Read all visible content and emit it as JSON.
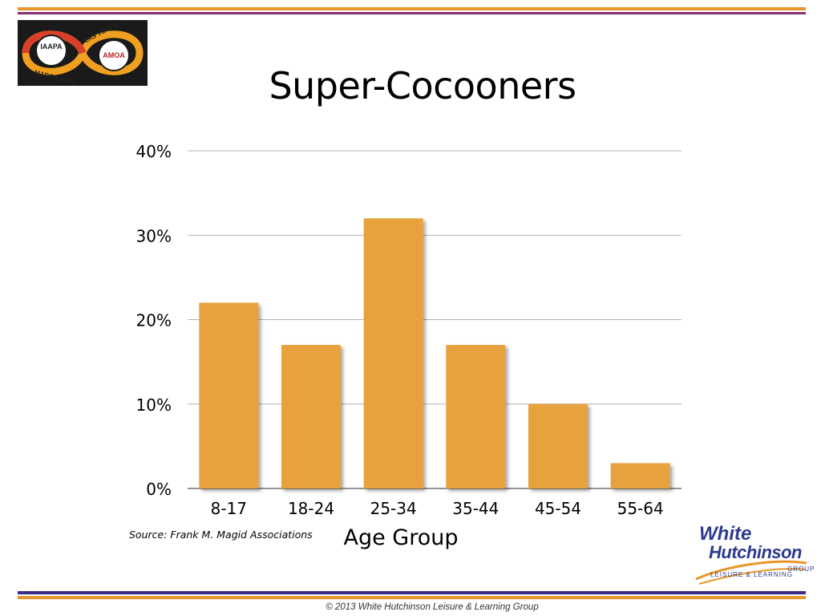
{
  "slide": {
    "title": "Super-Cocooners",
    "source": "Source: Frank M. Magid Associations",
    "footer": "© 2013 White Hutchinson Leisure & Learning Group"
  },
  "event_logo": {
    "org1": "IAAPA",
    "org2": "AMOA",
    "location": "LAS VEGAS, NV",
    "dates": "MARCH 20-22"
  },
  "brand_logo": {
    "line1": "White",
    "line2": "Hutchinson",
    "line3": "LEISURE & LEARNING",
    "line4": "GROUP"
  },
  "colors": {
    "bar": "#e8a23c",
    "accent_orange": "#e8972a",
    "accent_purple": "#8b2d6e",
    "accent_navy": "#3b2a8a",
    "logo_blue": "#2c3a8f"
  },
  "chart_data": {
    "type": "bar",
    "title": "",
    "xlabel": "Age Group",
    "ylabel": "",
    "categories": [
      "8-17",
      "18-24",
      "25-34",
      "35-44",
      "45-54",
      "55-64"
    ],
    "values": [
      22,
      17,
      32,
      17,
      10,
      3
    ],
    "ylim": [
      0,
      40
    ],
    "yticks": [
      0,
      10,
      20,
      30,
      40
    ],
    "ytick_labels": [
      "0%",
      "10%",
      "20%",
      "30%",
      "40%"
    ],
    "grid": true,
    "legend": "none"
  }
}
